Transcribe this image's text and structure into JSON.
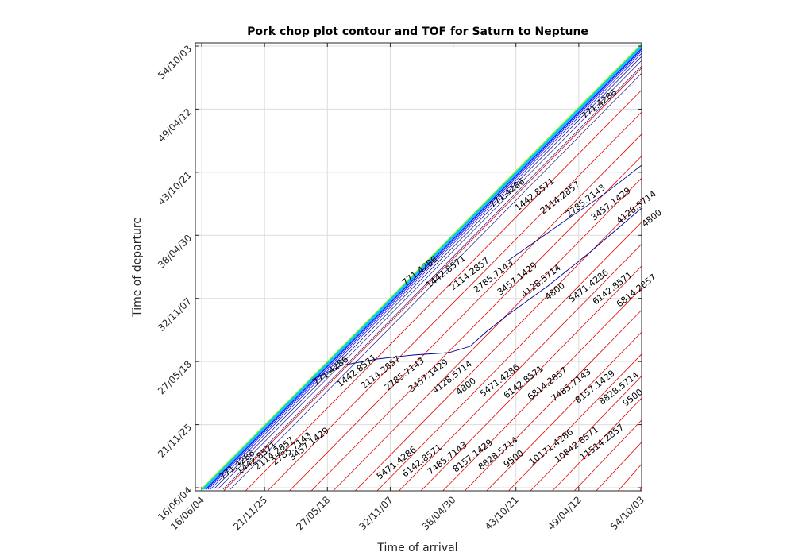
{
  "chart_data": {
    "type": "contour",
    "title": "Pork chop plot contour and TOF for Saturn to Neptune",
    "xlabel": "Time of arrival",
    "ylabel": "Time of departure",
    "x_ticks": [
      "16/06/04",
      "21/11/25",
      "27/05/18",
      "32/11/07",
      "38/04/30",
      "43/10/21",
      "49/04/12",
      "54/10/03"
    ],
    "y_ticks": [
      "16/06/04",
      "21/11/25",
      "27/05/18",
      "32/11/07",
      "38/04/30",
      "43/10/21",
      "49/04/12",
      "54/10/03"
    ],
    "grid": true,
    "colors": {
      "tof_lines": "#e00000",
      "contour_dark": "#00008b",
      "contour_mid": "#0000ff",
      "contour_light": "#00bfff",
      "contour_green": "#7fff00"
    },
    "tof_levels": [
      "771.4286",
      "1442.8571",
      "2114.2857",
      "2785.7143",
      "3457.1429",
      "4128.5714",
      "4800",
      "5471.4286",
      "6142.8571",
      "6814.2857",
      "7485.7143",
      "8157.1429",
      "8828.5714",
      "9500",
      "10171.4286",
      "10842.8571",
      "11514.2857"
    ],
    "tof_label_rows": [
      {
        "levels": [
          "771.4286",
          "1442.8571",
          "2114.2857",
          "2785.7143",
          "3457.1429"
        ]
      },
      {
        "levels": [
          "5471.4286",
          "6142.8571",
          "7485.7143",
          "8157.1429",
          "8828.5714",
          "9500",
          "10171.4286",
          "10842.8571",
          "11514.2857"
        ]
      },
      {
        "levels": [
          "771.4286",
          "1442.8571",
          "2114.2857",
          "2785.7143",
          "3457.1429",
          "4128.5714",
          "4800",
          "5471.4286",
          "6142.8571",
          "6814.2857",
          "7485.7143",
          "8157.1429",
          "8828.5714",
          "9500"
        ]
      },
      {
        "levels": [
          "771.4286",
          "1442.8571",
          "2114.2857",
          "2785.7143",
          "3457.1429",
          "4128.5714",
          "4800",
          "5471.4286",
          "6142.8571",
          "6814.2857"
        ]
      },
      {
        "levels": [
          "771.4286",
          "1442.8571",
          "2114.2857",
          "2785.7143",
          "3457.1429",
          "4128.5714",
          "4800"
        ]
      },
      {
        "levels": [
          "771.4286"
        ]
      }
    ]
  }
}
